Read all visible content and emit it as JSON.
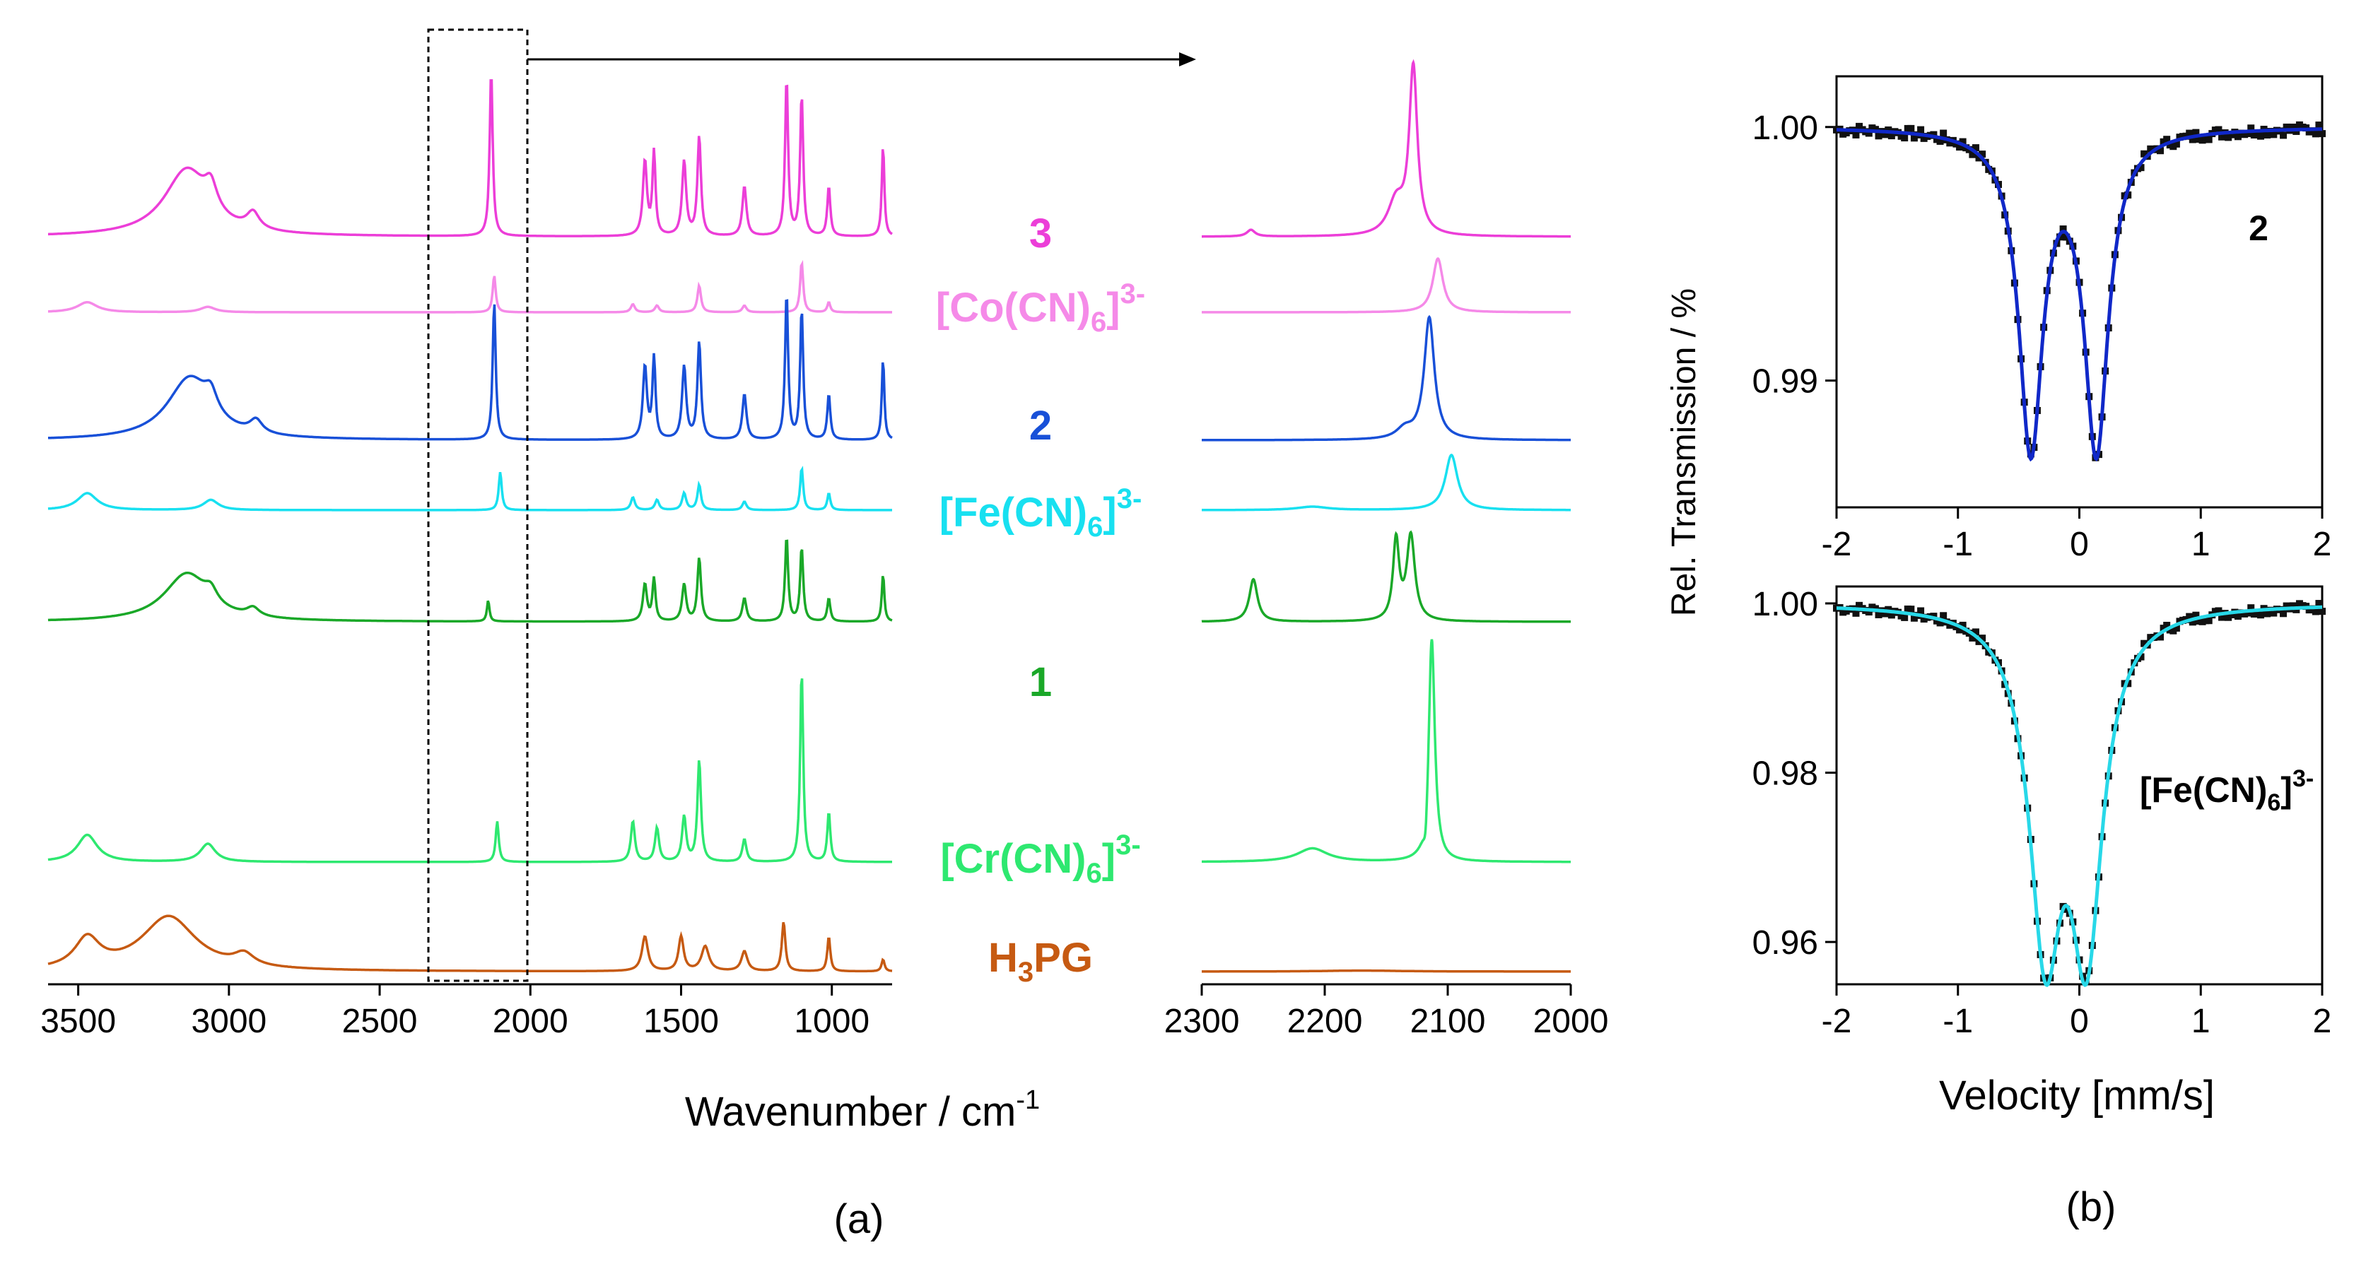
{
  "chart_data": [
    {
      "type": "line",
      "panel": "a-left",
      "title": "",
      "xlabel": "Wavenumber / cm",
      "xlabel_sup": "-1",
      "xlim": [
        3600,
        800
      ],
      "xticks": [
        3500,
        3000,
        2500,
        2000,
        1500,
        1000
      ],
      "stacked": true,
      "series": [
        {
          "name": "3",
          "name_sup": "",
          "name_sub": "",
          "color": "#ec3ed8",
          "peaks": [
            [
              3140,
              0.4,
              90
            ],
            [
              3060,
              0.15,
              25
            ],
            [
              2920,
              0.1,
              25
            ],
            [
              2130,
              1.0,
              6
            ],
            [
              1620,
              0.45,
              8
            ],
            [
              1590,
              0.5,
              6
            ],
            [
              1490,
              0.45,
              8
            ],
            [
              1440,
              0.6,
              7
            ],
            [
              1290,
              0.3,
              8
            ],
            [
              1150,
              0.95,
              6
            ],
            [
              1100,
              0.85,
              6
            ],
            [
              1010,
              0.3,
              6
            ],
            [
              830,
              0.55,
              5
            ]
          ]
        },
        {
          "name": "[Co(CN)",
          "name_sup": "3-",
          "name_sub": "6",
          "name_tail": "]",
          "color": "#f58ae8",
          "peaks": [
            [
              3470,
              0.15,
              40
            ],
            [
              3070,
              0.08,
              30
            ],
            [
              2120,
              0.55,
              6
            ],
            [
              1660,
              0.12,
              8
            ],
            [
              1580,
              0.1,
              8
            ],
            [
              1440,
              0.4,
              7
            ],
            [
              1290,
              0.1,
              8
            ],
            [
              1100,
              0.75,
              6
            ],
            [
              1010,
              0.15,
              6
            ]
          ]
        },
        {
          "name": "2",
          "name_sup": "",
          "name_sub": "",
          "color": "#1850d8",
          "peaks": [
            [
              3130,
              0.38,
              90
            ],
            [
              3060,
              0.12,
              25
            ],
            [
              2910,
              0.08,
              25
            ],
            [
              2120,
              0.85,
              6
            ],
            [
              1620,
              0.45,
              8
            ],
            [
              1590,
              0.5,
              6
            ],
            [
              1490,
              0.45,
              8
            ],
            [
              1440,
              0.6,
              7
            ],
            [
              1290,
              0.28,
              8
            ],
            [
              1150,
              0.9,
              6
            ],
            [
              1100,
              0.8,
              6
            ],
            [
              1010,
              0.28,
              6
            ],
            [
              830,
              0.5,
              5
            ]
          ]
        },
        {
          "name": "[Fe(CN)",
          "name_sup": "3-",
          "name_sub": "6",
          "name_tail": "]",
          "color": "#18e0f0",
          "peaks": [
            [
              3470,
              0.2,
              40
            ],
            [
              3060,
              0.12,
              30
            ],
            [
              2100,
              0.45,
              6
            ],
            [
              1660,
              0.15,
              8
            ],
            [
              1580,
              0.12,
              8
            ],
            [
              1490,
              0.2,
              8
            ],
            [
              1440,
              0.3,
              7
            ],
            [
              1290,
              0.1,
              8
            ],
            [
              1100,
              0.5,
              6
            ],
            [
              1010,
              0.2,
              6
            ]
          ]
        },
        {
          "name": "1",
          "name_sup": "",
          "name_sub": "",
          "color": "#1aa828",
          "peaks": [
            [
              3140,
              0.45,
              90
            ],
            [
              3060,
              0.12,
              25
            ],
            [
              2920,
              0.08,
              25
            ],
            [
              2140,
              0.2,
              5
            ],
            [
              1620,
              0.35,
              8
            ],
            [
              1590,
              0.4,
              6
            ],
            [
              1490,
              0.35,
              8
            ],
            [
              1440,
              0.6,
              7
            ],
            [
              1290,
              0.22,
              8
            ],
            [
              1150,
              0.8,
              6
            ],
            [
              1100,
              0.7,
              6
            ],
            [
              1010,
              0.22,
              6
            ],
            [
              830,
              0.45,
              5
            ]
          ]
        },
        {
          "name": "[Cr(CN)",
          "name_sup": "3-",
          "name_sub": "6",
          "name_tail": "]",
          "color": "#2ee870",
          "peaks": [
            [
              3470,
              0.12,
              40
            ],
            [
              3070,
              0.08,
              30
            ],
            [
              2110,
              0.18,
              6
            ],
            [
              1660,
              0.18,
              8
            ],
            [
              1580,
              0.15,
              8
            ],
            [
              1490,
              0.2,
              8
            ],
            [
              1440,
              0.45,
              7
            ],
            [
              1290,
              0.1,
              8
            ],
            [
              1100,
              0.85,
              6
            ],
            [
              1010,
              0.22,
              6
            ]
          ]
        },
        {
          "name": "H",
          "name_sup": "",
          "name_sub": "3",
          "name_tail": "PG",
          "color": "#c65a12",
          "peaks": [
            [
              3470,
              0.3,
              50
            ],
            [
              3200,
              0.55,
              110
            ],
            [
              2950,
              0.12,
              40
            ],
            [
              1620,
              0.35,
              12
            ],
            [
              1500,
              0.35,
              10
            ],
            [
              1420,
              0.25,
              15
            ],
            [
              1290,
              0.2,
              12
            ],
            [
              1160,
              0.5,
              7
            ],
            [
              1010,
              0.35,
              6
            ],
            [
              830,
              0.12,
              6
            ]
          ]
        }
      ],
      "annotations": [
        "dashed box 2340–2000 cm-1 with arrow to zoom panel"
      ]
    },
    {
      "type": "line",
      "panel": "a-right",
      "title": "",
      "xlim": [
        2300,
        2000
      ],
      "xticks": [
        2300,
        2200,
        2100,
        2000
      ],
      "stacked": true,
      "series": [
        {
          "name": "3",
          "peaks": [
            [
              2128,
              1.0,
              4
            ],
            [
              2142,
              0.2,
              8
            ],
            [
              2260,
              0.04,
              4
            ]
          ]
        },
        {
          "name": "[Co(CN)6]3-",
          "peaks": [
            [
              2108,
              0.8,
              5
            ]
          ]
        },
        {
          "name": "2",
          "peaks": [
            [
              2115,
              0.75,
              5
            ],
            [
              2135,
              0.06,
              8
            ]
          ]
        },
        {
          "name": "[Fe(CN)6]3-",
          "peaks": [
            [
              2097,
              0.65,
              6
            ],
            [
              2210,
              0.04,
              15
            ]
          ]
        },
        {
          "name": "1",
          "peaks": [
            [
              2258,
              0.4,
              4
            ],
            [
              2142,
              0.75,
              3
            ],
            [
              2130,
              0.8,
              4
            ]
          ]
        },
        {
          "name": "[Cr(CN)6]3-",
          "peaks": [
            [
              2113,
              1.0,
              3
            ],
            [
              2210,
              0.06,
              15
            ],
            [
              2118,
              -0.12,
              2
            ]
          ]
        },
        {
          "name": "H3PG",
          "peaks": [
            [
              2170,
              0.01,
              40
            ]
          ]
        }
      ]
    },
    {
      "type": "scatter",
      "panel": "b-top",
      "label": "2",
      "ylabel": "Rel. Transmission / %",
      "xlim": [
        -2,
        2
      ],
      "ylim": [
        0.985,
        1.002
      ],
      "xticks": [
        -2,
        -1,
        0,
        1,
        2
      ],
      "yticks": [
        1.0,
        0.99
      ],
      "ytick_labels": [
        "1.00",
        "0.99"
      ],
      "fit_color": "#1028c8",
      "fit_lines": [
        [
          -0.4,
          0.0125,
          0.12
        ],
        [
          0.14,
          0.0125,
          0.12
        ]
      ],
      "baseline": 1.0
    },
    {
      "type": "scatter",
      "panel": "b-bottom",
      "label": "[Fe(CN)",
      "label_sub": "6",
      "label_tail": "]",
      "label_sup": "3-",
      "xlabel": "Velocity [mm/s]",
      "xlim": [
        -2,
        2
      ],
      "ylim": [
        0.955,
        1.002
      ],
      "xticks": [
        -2,
        -1,
        0,
        1,
        2
      ],
      "yticks": [
        1.0,
        0.98,
        0.96
      ],
      "ytick_labels": [
        "1.00",
        "0.98",
        "0.96"
      ],
      "fit_color": "#28d8e8",
      "fit_lines": [
        [
          -0.28,
          0.038,
          0.16
        ],
        [
          0.06,
          0.038,
          0.16
        ]
      ],
      "baseline": 1.0
    }
  ],
  "panel_labels": {
    "a": "(a)",
    "b": "(b)"
  }
}
